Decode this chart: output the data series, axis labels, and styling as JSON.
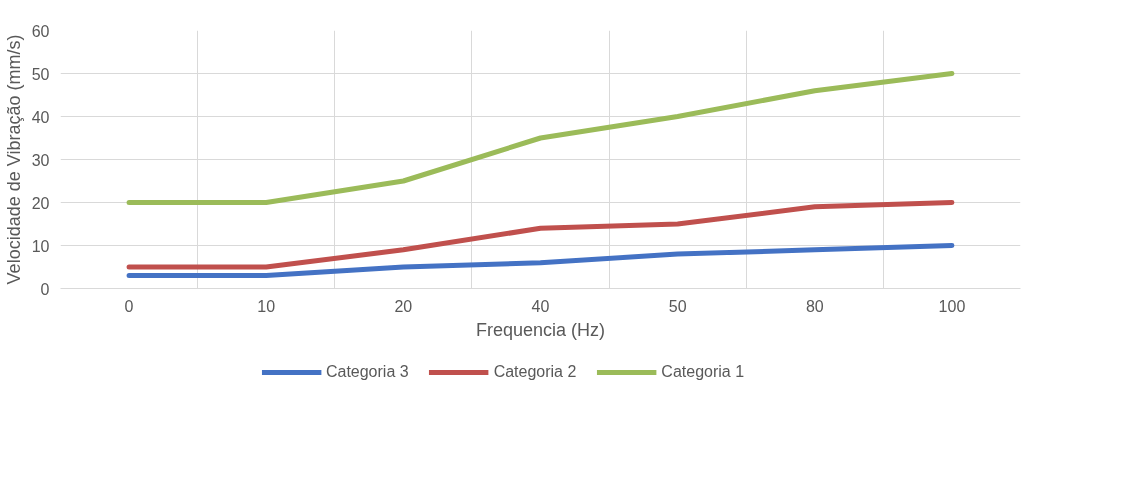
{
  "chart_data": {
    "type": "line",
    "xlabel": "Frequencia (Hz)",
    "ylabel": "Velocidade de Vibração (mm/s)",
    "categories": [
      "0",
      "10",
      "20",
      "40",
      "50",
      "80",
      "100"
    ],
    "series": [
      {
        "name": "Categoria 3",
        "color": "#4472c4",
        "values": [
          3,
          3,
          5,
          6,
          8,
          9,
          10
        ]
      },
      {
        "name": "Categoria 2",
        "color": "#c0504d",
        "values": [
          5,
          5,
          9,
          14,
          15,
          19,
          20
        ]
      },
      {
        "name": "Categoria 1",
        "color": "#9bbb59",
        "values": [
          20,
          20,
          25,
          35,
          40,
          46,
          50
        ]
      }
    ],
    "ylim": [
      0,
      60
    ],
    "yticks": [
      0,
      10,
      20,
      30,
      40,
      50,
      60
    ],
    "grid": true,
    "legend": "bottom",
    "line_style": "solid",
    "marker": "none"
  }
}
